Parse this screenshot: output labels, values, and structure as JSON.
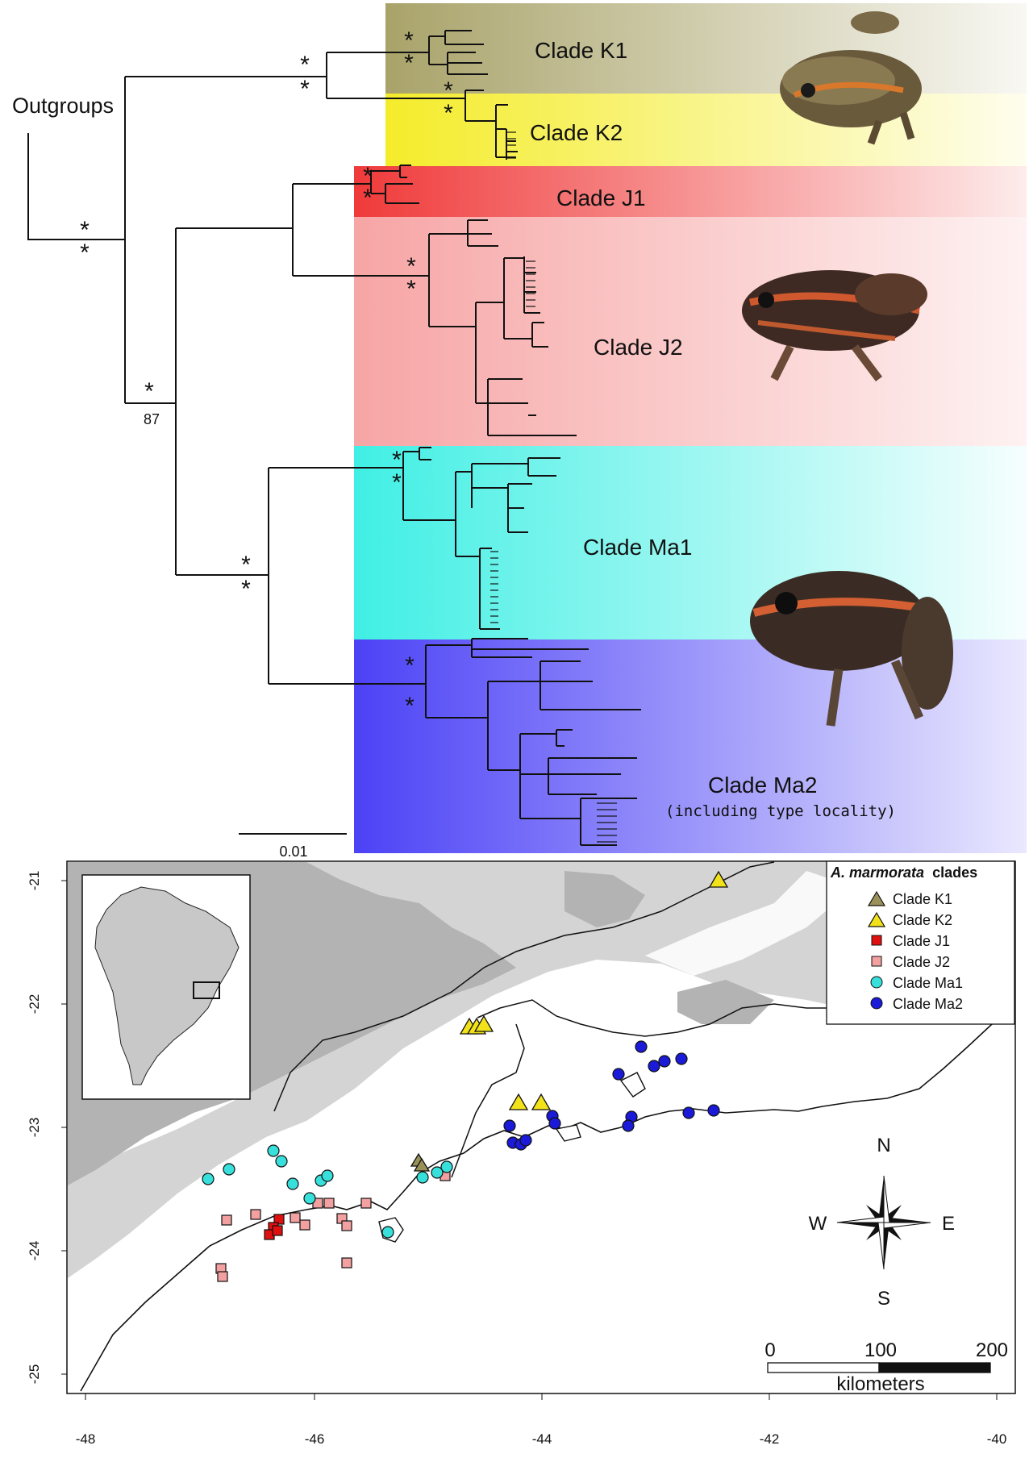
{
  "tree": {
    "outgroups_label": "Outgroups",
    "support_star": "*",
    "support_87": "87",
    "scale_value": "0.01",
    "clades": [
      {
        "key": "k1",
        "label": "Clade K1",
        "color": "#a9a36a"
      },
      {
        "key": "k2",
        "label": "Clade K2",
        "color": "#f4ec2a"
      },
      {
        "key": "j1",
        "label": "Clade J1",
        "color": "#f05050"
      },
      {
        "key": "j2",
        "label": "Clade J2",
        "color": "#f7a5a5"
      },
      {
        "key": "ma1",
        "label": "Clade Ma1",
        "color": "#47eee3"
      },
      {
        "key": "ma2",
        "label": "Clade Ma2",
        "color": "#5046f5"
      }
    ],
    "ma2_note": "(including type locality)"
  },
  "map": {
    "legend_title_italic": "A. marmorata",
    "legend_title_rest": "clades",
    "legend": [
      {
        "label": "Clade K1",
        "shape": "triangle",
        "color": "#9a9158"
      },
      {
        "label": "Clade K2",
        "shape": "triangle",
        "color": "#f2e21a"
      },
      {
        "label": "Clade J1",
        "shape": "square",
        "color": "#e01010"
      },
      {
        "label": "Clade J2",
        "shape": "square",
        "color": "#f2a0a0"
      },
      {
        "label": "Clade Ma1",
        "shape": "circle",
        "color": "#38e0dc"
      },
      {
        "label": "Clade Ma2",
        "shape": "circle",
        "color": "#1a1ad8"
      }
    ],
    "compass": {
      "n": "N",
      "s": "S",
      "e": "E",
      "w": "W"
    },
    "scale_bar": {
      "labels": [
        "0",
        "100",
        "200"
      ],
      "unit": "kilometers"
    },
    "x_ticks": [
      "-48",
      "-46",
      "-44",
      "-42",
      "-40"
    ],
    "y_ticks": [
      "-21",
      "-22",
      "-23",
      "-24",
      "-25"
    ]
  }
}
